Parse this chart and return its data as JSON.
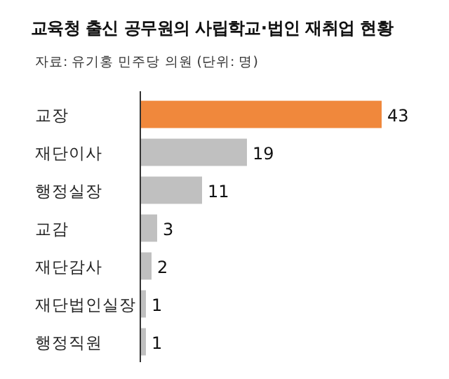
{
  "chart_data": {
    "type": "bar",
    "orientation": "horizontal",
    "title": "교육청 출신 공무원의 사립학교·법인 재취업 현황",
    "subtitle": "자료: 유기홍 민주당 의원 (단위: 명)",
    "categories": [
      "교장",
      "재단이사",
      "행정실장",
      "교감",
      "재단감사",
      "재단법인실장",
      "행정직원"
    ],
    "values": [
      43,
      19,
      11,
      3,
      2,
      1,
      1
    ],
    "colors": [
      "#f0883c",
      "#c0c0c0",
      "#c0c0c0",
      "#c0c0c0",
      "#c0c0c0",
      "#c0c0c0",
      "#c0c0c0"
    ],
    "data_labels": true
  }
}
